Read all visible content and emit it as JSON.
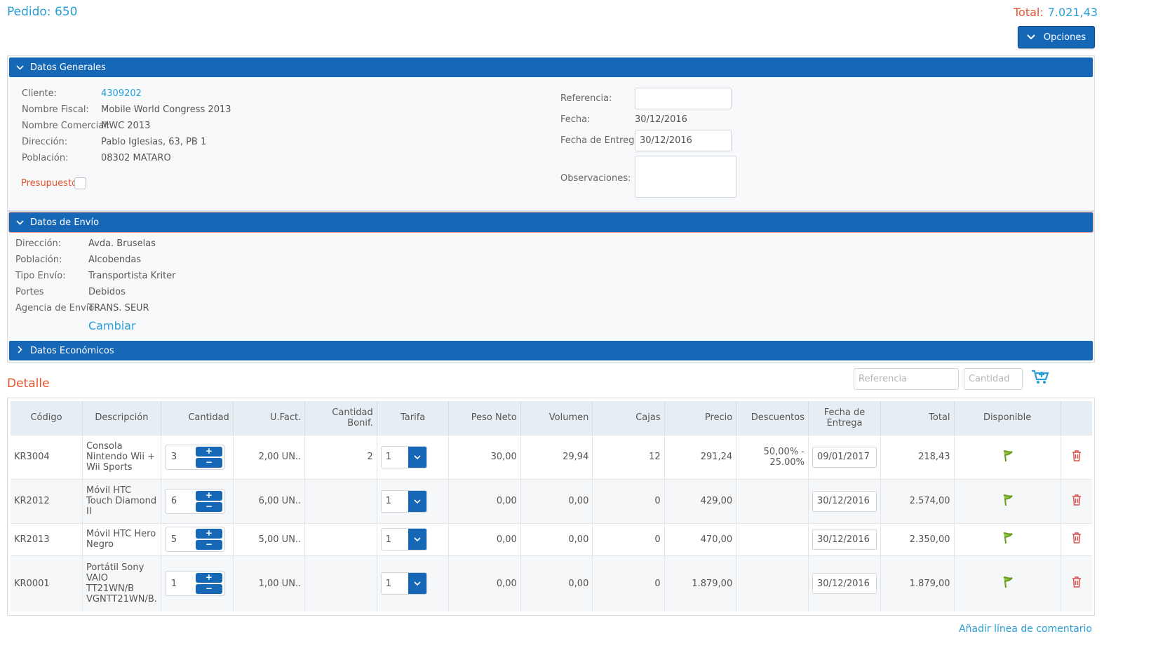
{
  "header": {
    "title": "Pedido: 650",
    "total_label": "Total:",
    "total_value": "7.021,43",
    "options_label": "Opciones"
  },
  "datos_generales": {
    "header": "Datos Generales",
    "cliente_label": "Cliente:",
    "cliente_value": "4309202",
    "nombre_fiscal_label": "Nombre Fiscal:",
    "nombre_fiscal_value": "Mobile World Congress 2013",
    "nombre_comercial_label": "Nombre Comercial:",
    "nombre_comercial_value": "MWC 2013",
    "direccion_label": "Dirección:",
    "direccion_value": "Pablo Iglesias, 63, PB 1",
    "poblacion_label": "Población:",
    "poblacion_value": "08302 MATARO",
    "presupuesto_label": "Presupuesto",
    "referencia_label": "Referencia:",
    "referencia_value": "",
    "fecha_label": "Fecha:",
    "fecha_value": "30/12/2016",
    "fecha_entrega_label": "Fecha de Entrega:",
    "fecha_entrega_value": "30/12/2016",
    "observaciones_label": "Observaciones:",
    "observaciones_value": ""
  },
  "datos_envio": {
    "header": "Datos de Envío",
    "direccion_label": "Dirección:",
    "direccion_value": "Avda. Bruselas",
    "poblacion_label": "Población:",
    "poblacion_value": "Alcobendas",
    "tipo_envio_label": "Tipo Envío:",
    "tipo_envio_value": "Transportista Kriter",
    "portes_label": "Portes",
    "portes_value": "Debidos",
    "agencia_label": "Agencia de Envío:",
    "agencia_value": "TRANS. SEUR",
    "cambiar_label": "Cambiar"
  },
  "datos_economicos": {
    "header": "Datos Económicos"
  },
  "detalle": {
    "title": "Detalle",
    "referencia_placeholder": "Referencia",
    "cantidad_placeholder": "Cantidad",
    "columns": [
      "Código",
      "Descripción",
      "Cantidad",
      "U.Fact.",
      "Cantidad Bonif.",
      "Tarifa",
      "Peso Neto",
      "Volumen",
      "Cajas",
      "Precio",
      "Descuentos",
      "Fecha de Entrega",
      "Total",
      "Disponible",
      ""
    ],
    "rows": [
      {
        "codigo": "KR3004",
        "descripcion": "Consola Nintendo Wii + Wii Sports",
        "cantidad": "3",
        "ufact": "2,00 UN..",
        "bonif": "2",
        "tarifa": "1",
        "peso": "30,00",
        "volumen": "29,94",
        "cajas": "12",
        "precio": "291,24",
        "descuentos": "50,00% - 25.00%",
        "fecha": "09/01/2017",
        "total": "218,43"
      },
      {
        "codigo": "KR2012",
        "descripcion": "Móvil HTC Touch Diamond II",
        "cantidad": "6",
        "ufact": "6,00 UN..",
        "bonif": "",
        "tarifa": "1",
        "peso": "0,00",
        "volumen": "0,00",
        "cajas": "0",
        "precio": "429,00",
        "descuentos": "",
        "fecha": "30/12/2016",
        "total": "2.574,00"
      },
      {
        "codigo": "KR2013",
        "descripcion": "Móvil HTC Hero Negro",
        "cantidad": "5",
        "ufact": "5,00 UN..",
        "bonif": "",
        "tarifa": "1",
        "peso": "0,00",
        "volumen": "0,00",
        "cajas": "0",
        "precio": "470,00",
        "descuentos": "",
        "fecha": "30/12/2016",
        "total": "2.350,00"
      },
      {
        "codigo": "KR0001",
        "descripcion": "Portátil Sony VAIO TT21WN/B VGNTT21WN/B.",
        "cantidad": "1",
        "ufact": "1,00 UN..",
        "bonif": "",
        "tarifa": "1",
        "peso": "0,00",
        "volumen": "0,00",
        "cajas": "0",
        "precio": "1.879,00",
        "descuentos": "",
        "fecha": "30/12/2016",
        "total": "1.879,00"
      }
    ],
    "add_comment_label": "Añadir línea de comentario"
  },
  "colors": {
    "primary": "#1667b5",
    "link": "#2a9fd6",
    "accent": "#e8532c",
    "delete": "#d9534f",
    "flag": "#6a9a1f"
  },
  "icons": {
    "options": "chevron-down-icon",
    "add_cart": "add-to-cart-icon",
    "available": "flag-icon",
    "delete": "trash-icon"
  }
}
